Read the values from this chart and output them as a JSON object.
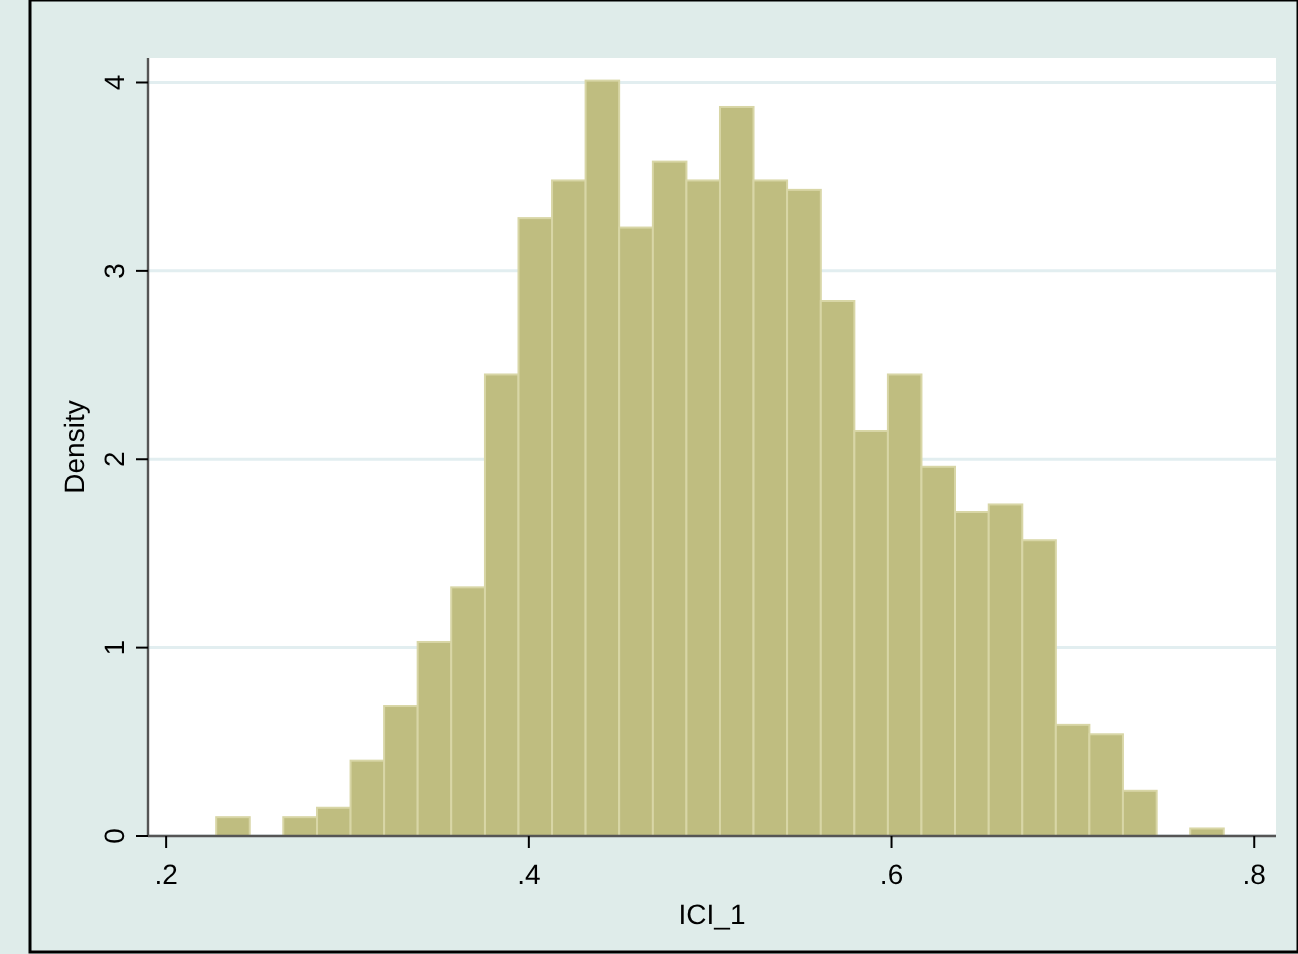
{
  "chart_data": {
    "type": "histogram",
    "xlabel": "ICI_1",
    "ylabel": "Density",
    "bins": [
      0.2276,
      0.2461,
      0.2646,
      0.2832,
      0.3017,
      0.3202,
      0.3387,
      0.3572,
      0.3758,
      0.3943,
      0.4128,
      0.4313,
      0.4498,
      0.4684,
      0.4869,
      0.5054,
      0.5239,
      0.5424,
      0.561,
      0.5795,
      0.598,
      0.6165,
      0.635,
      0.6536,
      0.6721,
      0.6906,
      0.7091,
      0.7276,
      0.7462,
      0.7647,
      0.7832
    ],
    "values": [
      0.1,
      0,
      0.1,
      0.15,
      0.4,
      0.69,
      1.03,
      1.32,
      2.45,
      3.28,
      3.48,
      4.01,
      3.23,
      3.58,
      3.48,
      3.87,
      3.48,
      3.43,
      2.84,
      2.15,
      2.45,
      1.96,
      1.72,
      1.76,
      1.57,
      0.59,
      0.54,
      0.24,
      0,
      0.04
    ],
    "color": "#bfbd80",
    "xlim": [
      0.19,
      0.812
    ],
    "ylim": [
      0,
      4.13
    ],
    "xticks": [
      {
        "value": 0.2,
        "label": ".2"
      },
      {
        "value": 0.4,
        "label": ".4"
      },
      {
        "value": 0.6,
        "label": ".6"
      },
      {
        "value": 0.8,
        "label": ".8"
      }
    ],
    "yticks": [
      0,
      1,
      2,
      3,
      4
    ],
    "grid": "y"
  }
}
